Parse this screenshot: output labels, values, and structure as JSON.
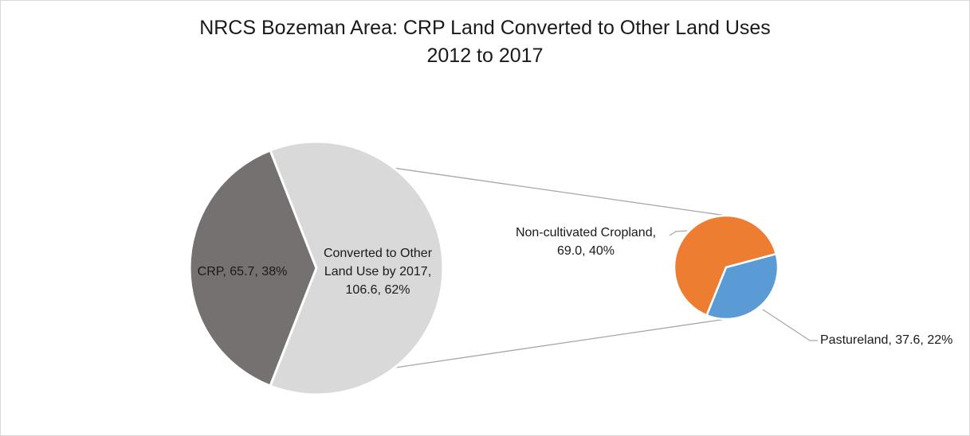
{
  "chart_data": {
    "type": "pie",
    "subtype": "pie-of-pie",
    "title": "NRCS Bozeman Area: CRP Land Converted to Other Land Uses",
    "subtitle": "2012 to 2017",
    "unit": "",
    "main_pie": {
      "slices": [
        {
          "name": "CRP",
          "value": 65.7,
          "percent": "38%",
          "color": "#767171",
          "label": "CRP, 65.7, 38%"
        },
        {
          "name": "Converted to Other Land Use by 2017",
          "value": 106.6,
          "percent": "62%",
          "color": "#d9d9d9",
          "label_lines": [
            "Converted to Other",
            "Land Use by 2017,",
            "106.6, 62%"
          ]
        }
      ]
    },
    "secondary_pie": {
      "parent": "Converted to Other Land Use by 2017",
      "slices": [
        {
          "name": "Non-cultivated Cropland",
          "value": 69.0,
          "percent": "40%",
          "color": "#ed7d31",
          "label_lines": [
            "Non-cultivated Cropland,",
            "69.0, 40%"
          ]
        },
        {
          "name": "Pastureland",
          "value": 37.6,
          "percent": "22%",
          "color": "#5b9bd5",
          "label": "Pastureland, 37.6, 22%"
        }
      ]
    },
    "legend": "none"
  }
}
